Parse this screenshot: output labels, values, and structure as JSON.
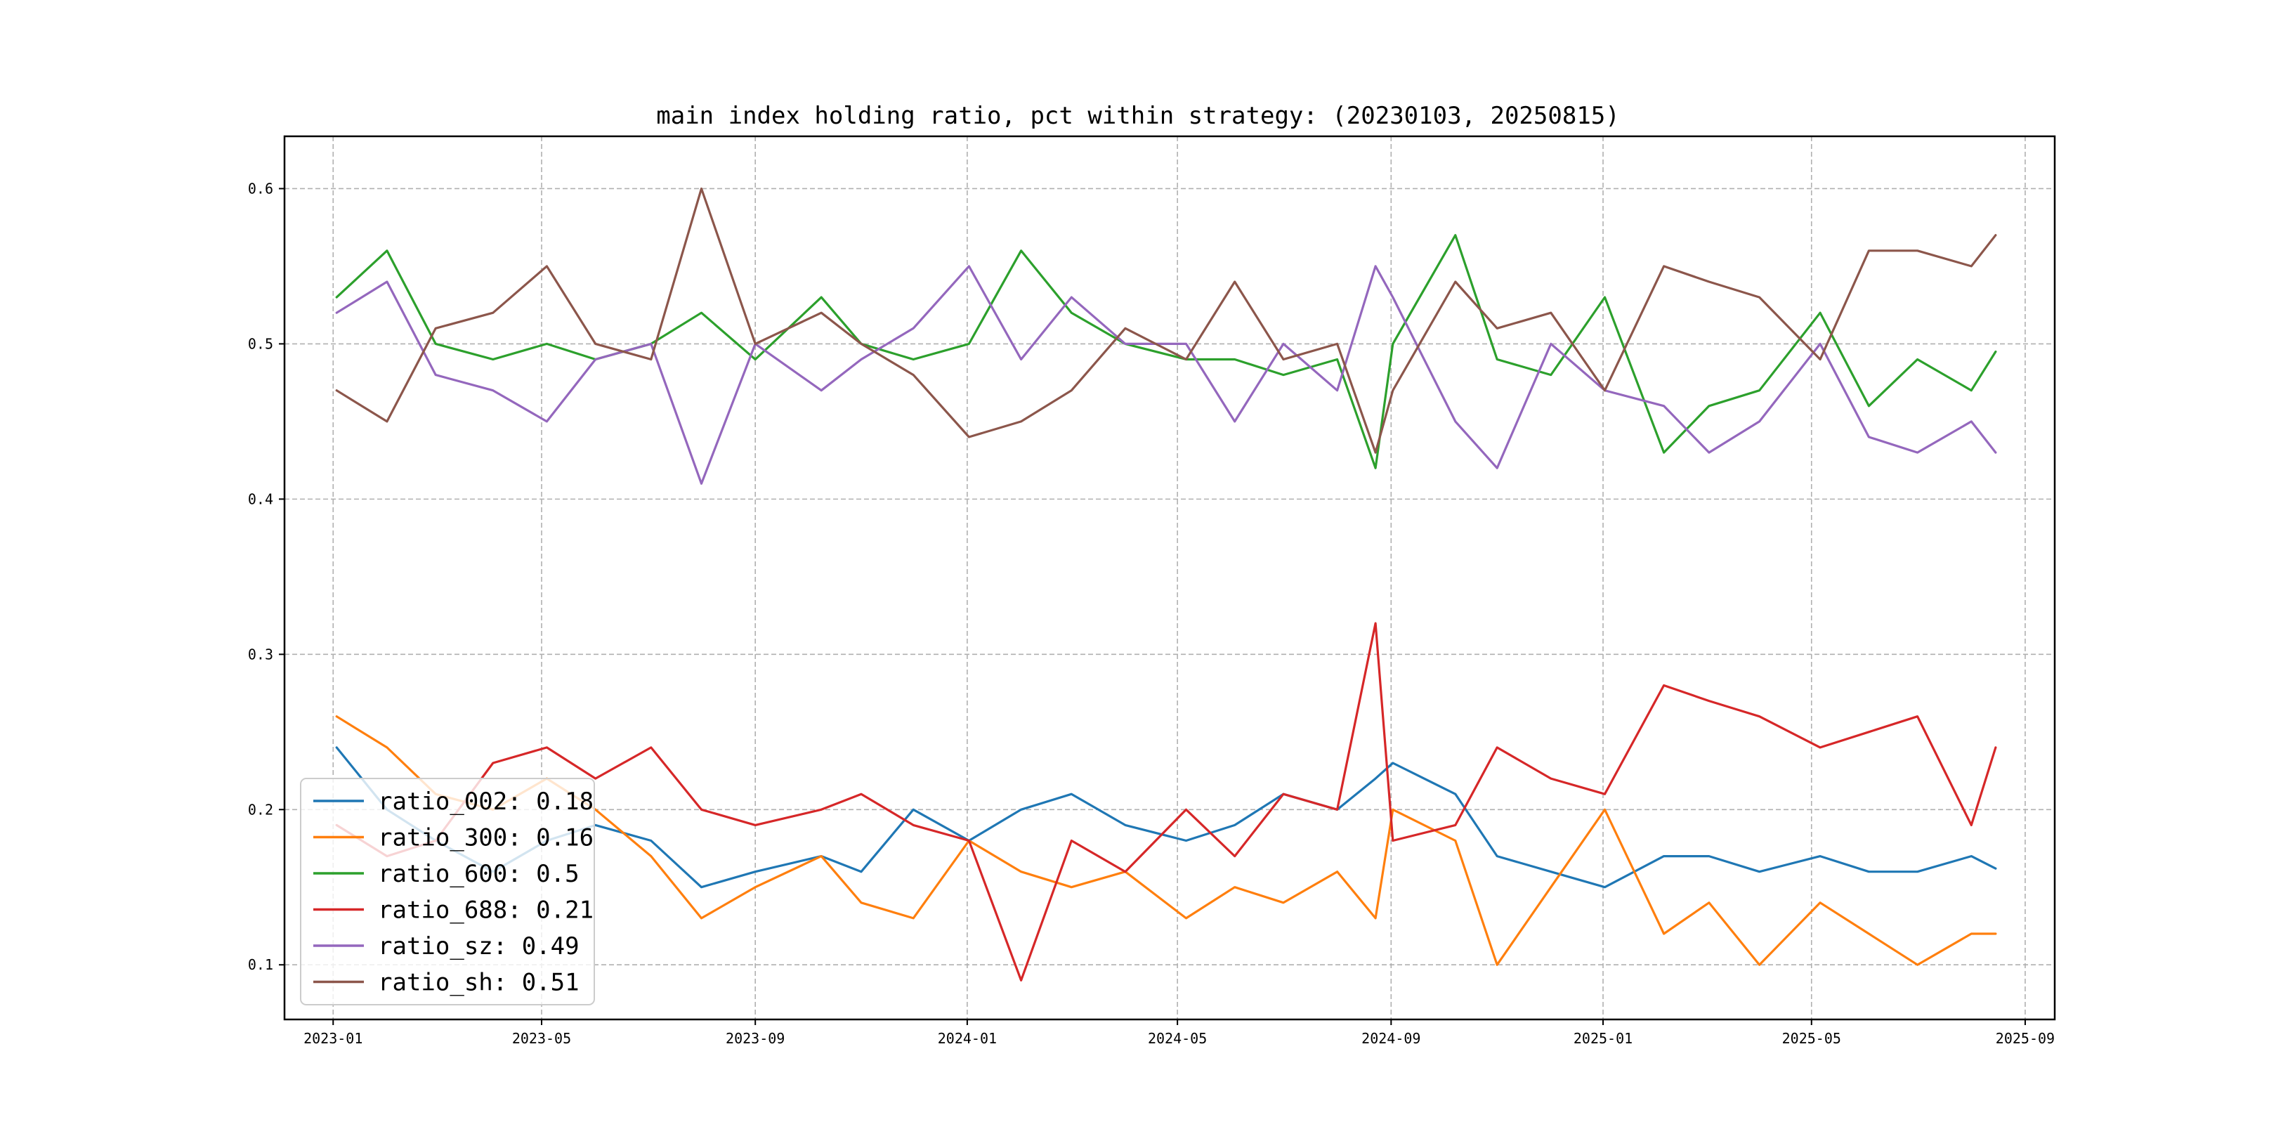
{
  "chart_data": {
    "type": "line",
    "title": "main index holding ratio, pct within strategy: (20230103, 20250815)",
    "xlabel": "",
    "ylabel": "",
    "x_range": [
      "2022-12-04",
      "2025-09-18"
    ],
    "ylim": [
      0.0648,
      0.6337
    ],
    "grid": true,
    "grid_style": "dashed",
    "legend_position": "lower-left",
    "x_ticks": [
      {
        "date": "2023-01-01",
        "label": "2023-01"
      },
      {
        "date": "2023-05-01",
        "label": "2023-05"
      },
      {
        "date": "2023-09-01",
        "label": "2023-09"
      },
      {
        "date": "2024-01-01",
        "label": "2024-01"
      },
      {
        "date": "2024-05-01",
        "label": "2024-05"
      },
      {
        "date": "2024-09-01",
        "label": "2024-09"
      },
      {
        "date": "2025-01-01",
        "label": "2025-01"
      },
      {
        "date": "2025-05-01",
        "label": "2025-05"
      },
      {
        "date": "2025-09-01",
        "label": "2025-09"
      }
    ],
    "y_ticks": [
      {
        "value": 0.1,
        "label": "0.1"
      },
      {
        "value": 0.2,
        "label": "0.2"
      },
      {
        "value": 0.3,
        "label": "0.3"
      },
      {
        "value": 0.4,
        "label": "0.4"
      },
      {
        "value": 0.5,
        "label": "0.5"
      },
      {
        "value": 0.6,
        "label": "0.6"
      }
    ],
    "series": [
      {
        "name": "ratio_002",
        "legend_label": "ratio_002: 0.18",
        "color": "#1f77b4",
        "points": [
          [
            "2023-01-03",
            0.24
          ],
          [
            "2023-02-01",
            0.2
          ],
          [
            "2023-03-01",
            0.18
          ],
          [
            "2023-04-03",
            0.16
          ],
          [
            "2023-05-04",
            0.18
          ],
          [
            "2023-06-01",
            0.19
          ],
          [
            "2023-07-03",
            0.18
          ],
          [
            "2023-08-01",
            0.15
          ],
          [
            "2023-09-01",
            0.16
          ],
          [
            "2023-10-09",
            0.17
          ],
          [
            "2023-11-01",
            0.16
          ],
          [
            "2023-12-01",
            0.2
          ],
          [
            "2024-01-02",
            0.18
          ],
          [
            "2024-02-01",
            0.2
          ],
          [
            "2024-03-01",
            0.21
          ],
          [
            "2024-04-01",
            0.19
          ],
          [
            "2024-05-06",
            0.18
          ],
          [
            "2024-06-03",
            0.19
          ],
          [
            "2024-07-01",
            0.21
          ],
          [
            "2024-08-01",
            0.2
          ],
          [
            "2024-08-23",
            0.22
          ],
          [
            "2024-09-02",
            0.23
          ],
          [
            "2024-10-08",
            0.21
          ],
          [
            "2024-11-01",
            0.17
          ],
          [
            "2024-12-02",
            0.16
          ],
          [
            "2025-01-02",
            0.15
          ],
          [
            "2025-02-05",
            0.17
          ],
          [
            "2025-03-03",
            0.17
          ],
          [
            "2025-04-01",
            0.16
          ],
          [
            "2025-05-06",
            0.17
          ],
          [
            "2025-06-03",
            0.16
          ],
          [
            "2025-07-01",
            0.16
          ],
          [
            "2025-08-01",
            0.17
          ],
          [
            "2025-08-15",
            0.162
          ]
        ]
      },
      {
        "name": "ratio_300",
        "legend_label": "ratio_300: 0.16",
        "color": "#ff7f0e",
        "points": [
          [
            "2023-01-03",
            0.26
          ],
          [
            "2023-02-01",
            0.24
          ],
          [
            "2023-03-01",
            0.21
          ],
          [
            "2023-04-03",
            0.2
          ],
          [
            "2023-05-04",
            0.22
          ],
          [
            "2023-06-01",
            0.2
          ],
          [
            "2023-07-03",
            0.17
          ],
          [
            "2023-08-01",
            0.13
          ],
          [
            "2023-09-01",
            0.15
          ],
          [
            "2023-10-09",
            0.17
          ],
          [
            "2023-11-01",
            0.14
          ],
          [
            "2023-12-01",
            0.13
          ],
          [
            "2024-01-02",
            0.18
          ],
          [
            "2024-02-01",
            0.16
          ],
          [
            "2024-03-01",
            0.15
          ],
          [
            "2024-04-01",
            0.16
          ],
          [
            "2024-05-06",
            0.13
          ],
          [
            "2024-06-03",
            0.15
          ],
          [
            "2024-07-01",
            0.14
          ],
          [
            "2024-08-01",
            0.16
          ],
          [
            "2024-08-23",
            0.13
          ],
          [
            "2024-09-02",
            0.2
          ],
          [
            "2024-10-08",
            0.18
          ],
          [
            "2024-11-01",
            0.1
          ],
          [
            "2024-12-02",
            0.15
          ],
          [
            "2025-01-02",
            0.2
          ],
          [
            "2025-02-05",
            0.12
          ],
          [
            "2025-03-03",
            0.14
          ],
          [
            "2025-04-01",
            0.1
          ],
          [
            "2025-05-06",
            0.14
          ],
          [
            "2025-06-03",
            0.12
          ],
          [
            "2025-07-01",
            0.1
          ],
          [
            "2025-08-01",
            0.12
          ],
          [
            "2025-08-15",
            0.12
          ]
        ]
      },
      {
        "name": "ratio_600",
        "legend_label": "ratio_600: 0.5",
        "color": "#2ca02c",
        "points": [
          [
            "2023-01-03",
            0.53
          ],
          [
            "2023-02-01",
            0.56
          ],
          [
            "2023-03-01",
            0.5
          ],
          [
            "2023-04-03",
            0.49
          ],
          [
            "2023-05-04",
            0.5
          ],
          [
            "2023-06-01",
            0.49
          ],
          [
            "2023-07-03",
            0.5
          ],
          [
            "2023-08-01",
            0.52
          ],
          [
            "2023-09-01",
            0.49
          ],
          [
            "2023-10-09",
            0.53
          ],
          [
            "2023-11-01",
            0.5
          ],
          [
            "2023-12-01",
            0.49
          ],
          [
            "2024-01-02",
            0.5
          ],
          [
            "2024-02-01",
            0.56
          ],
          [
            "2024-03-01",
            0.52
          ],
          [
            "2024-04-01",
            0.5
          ],
          [
            "2024-05-06",
            0.49
          ],
          [
            "2024-06-03",
            0.49
          ],
          [
            "2024-07-01",
            0.48
          ],
          [
            "2024-08-01",
            0.49
          ],
          [
            "2024-08-23",
            0.42
          ],
          [
            "2024-09-02",
            0.5
          ],
          [
            "2024-10-08",
            0.57
          ],
          [
            "2024-11-01",
            0.49
          ],
          [
            "2024-12-02",
            0.48
          ],
          [
            "2025-01-02",
            0.53
          ],
          [
            "2025-02-05",
            0.43
          ],
          [
            "2025-03-03",
            0.46
          ],
          [
            "2025-04-01",
            0.47
          ],
          [
            "2025-05-06",
            0.52
          ],
          [
            "2025-06-03",
            0.46
          ],
          [
            "2025-07-01",
            0.49
          ],
          [
            "2025-08-01",
            0.47
          ],
          [
            "2025-08-15",
            0.495
          ]
        ]
      },
      {
        "name": "ratio_688",
        "legend_label": "ratio_688: 0.21",
        "color": "#d62728",
        "points": [
          [
            "2023-01-03",
            0.19
          ],
          [
            "2023-02-01",
            0.17
          ],
          [
            "2023-03-01",
            0.18
          ],
          [
            "2023-04-03",
            0.23
          ],
          [
            "2023-05-04",
            0.24
          ],
          [
            "2023-06-01",
            0.22
          ],
          [
            "2023-07-03",
            0.24
          ],
          [
            "2023-08-01",
            0.2
          ],
          [
            "2023-09-01",
            0.19
          ],
          [
            "2023-10-09",
            0.2
          ],
          [
            "2023-11-01",
            0.21
          ],
          [
            "2023-12-01",
            0.19
          ],
          [
            "2024-01-02",
            0.18
          ],
          [
            "2024-02-01",
            0.09
          ],
          [
            "2024-03-01",
            0.18
          ],
          [
            "2024-04-01",
            0.16
          ],
          [
            "2024-05-06",
            0.2
          ],
          [
            "2024-06-03",
            0.17
          ],
          [
            "2024-07-01",
            0.21
          ],
          [
            "2024-08-01",
            0.2
          ],
          [
            "2024-08-23",
            0.32
          ],
          [
            "2024-09-02",
            0.18
          ],
          [
            "2024-10-08",
            0.19
          ],
          [
            "2024-11-01",
            0.24
          ],
          [
            "2024-12-02",
            0.22
          ],
          [
            "2025-01-02",
            0.21
          ],
          [
            "2025-02-05",
            0.28
          ],
          [
            "2025-03-03",
            0.27
          ],
          [
            "2025-04-01",
            0.26
          ],
          [
            "2025-05-06",
            0.24
          ],
          [
            "2025-06-03",
            0.25
          ],
          [
            "2025-07-01",
            0.26
          ],
          [
            "2025-08-01",
            0.19
          ],
          [
            "2025-08-15",
            0.24
          ]
        ]
      },
      {
        "name": "ratio_sz",
        "legend_label": "ratio_sz: 0.49",
        "color": "#9467bd",
        "points": [
          [
            "2023-01-03",
            0.52
          ],
          [
            "2023-02-01",
            0.54
          ],
          [
            "2023-03-01",
            0.48
          ],
          [
            "2023-04-03",
            0.47
          ],
          [
            "2023-05-04",
            0.45
          ],
          [
            "2023-06-01",
            0.49
          ],
          [
            "2023-07-03",
            0.5
          ],
          [
            "2023-08-01",
            0.41
          ],
          [
            "2023-09-01",
            0.5
          ],
          [
            "2023-10-09",
            0.47
          ],
          [
            "2023-11-01",
            0.49
          ],
          [
            "2023-12-01",
            0.51
          ],
          [
            "2024-01-02",
            0.55
          ],
          [
            "2024-02-01",
            0.49
          ],
          [
            "2024-03-01",
            0.53
          ],
          [
            "2024-04-01",
            0.5
          ],
          [
            "2024-05-06",
            0.5
          ],
          [
            "2024-06-03",
            0.45
          ],
          [
            "2024-07-01",
            0.5
          ],
          [
            "2024-08-01",
            0.47
          ],
          [
            "2024-08-23",
            0.55
          ],
          [
            "2024-09-02",
            0.53
          ],
          [
            "2024-10-08",
            0.45
          ],
          [
            "2024-11-01",
            0.42
          ],
          [
            "2024-12-02",
            0.5
          ],
          [
            "2025-01-02",
            0.47
          ],
          [
            "2025-02-05",
            0.46
          ],
          [
            "2025-03-03",
            0.43
          ],
          [
            "2025-04-01",
            0.45
          ],
          [
            "2025-05-06",
            0.5
          ],
          [
            "2025-06-03",
            0.44
          ],
          [
            "2025-07-01",
            0.43
          ],
          [
            "2025-08-01",
            0.45
          ],
          [
            "2025-08-15",
            0.43
          ]
        ]
      },
      {
        "name": "ratio_sh",
        "legend_label": "ratio_sh: 0.51",
        "color": "#8c564b",
        "points": [
          [
            "2023-01-03",
            0.47
          ],
          [
            "2023-02-01",
            0.45
          ],
          [
            "2023-03-01",
            0.51
          ],
          [
            "2023-04-03",
            0.52
          ],
          [
            "2023-05-04",
            0.55
          ],
          [
            "2023-06-01",
            0.5
          ],
          [
            "2023-07-03",
            0.49
          ],
          [
            "2023-08-01",
            0.6
          ],
          [
            "2023-09-01",
            0.5
          ],
          [
            "2023-10-09",
            0.52
          ],
          [
            "2023-11-01",
            0.5
          ],
          [
            "2023-12-01",
            0.48
          ],
          [
            "2024-01-02",
            0.44
          ],
          [
            "2024-02-01",
            0.45
          ],
          [
            "2024-03-01",
            0.47
          ],
          [
            "2024-04-01",
            0.51
          ],
          [
            "2024-05-06",
            0.49
          ],
          [
            "2024-06-03",
            0.54
          ],
          [
            "2024-07-01",
            0.49
          ],
          [
            "2024-08-01",
            0.5
          ],
          [
            "2024-08-23",
            0.43
          ],
          [
            "2024-09-02",
            0.47
          ],
          [
            "2024-10-08",
            0.54
          ],
          [
            "2024-11-01",
            0.51
          ],
          [
            "2024-12-02",
            0.52
          ],
          [
            "2025-01-02",
            0.47
          ],
          [
            "2025-02-05",
            0.55
          ],
          [
            "2025-03-03",
            0.54
          ],
          [
            "2025-04-01",
            0.53
          ],
          [
            "2025-05-06",
            0.49
          ],
          [
            "2025-06-03",
            0.56
          ],
          [
            "2025-07-01",
            0.56
          ],
          [
            "2025-08-01",
            0.55
          ],
          [
            "2025-08-15",
            0.57
          ]
        ]
      }
    ]
  }
}
